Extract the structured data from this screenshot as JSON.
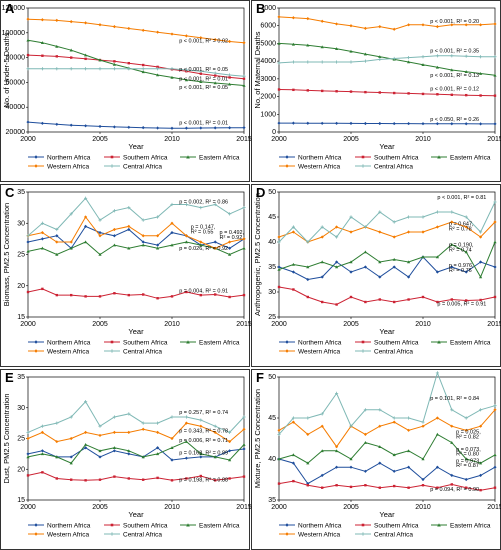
{
  "series_meta": [
    {
      "name": "Northern Africa",
      "color": "#1f4e9c",
      "marker": "diamond"
    },
    {
      "name": "Southern Africa",
      "color": "#cc2233",
      "marker": "square"
    },
    {
      "name": "Eastern Africa",
      "color": "#2e7d32",
      "marker": "triangle"
    },
    {
      "name": "Western Africa",
      "color": "#f57c00",
      "marker": "diamond"
    },
    {
      "name": "Central Africa",
      "color": "#7fb8b5",
      "marker": "plus"
    }
  ],
  "chart_data": [
    {
      "panel": "A",
      "type": "line",
      "x": [
        2000,
        2001,
        2002,
        2003,
        2004,
        2005,
        2006,
        2007,
        2008,
        2009,
        2010,
        2011,
        2012,
        2013,
        2014,
        2015
      ],
      "xlabel": "Year",
      "ylabel": "No. of Under-5 Deaths",
      "ylim": [
        20000,
        120000
      ],
      "yticks": [
        20000,
        40000,
        60000,
        80000,
        100000,
        120000
      ],
      "xticks": [
        2000,
        2005,
        2010,
        2015
      ],
      "series": [
        {
          "values": [
            28000,
            27000,
            26200,
            25500,
            25000,
            24500,
            24100,
            23800,
            23500,
            23200,
            23000,
            23100,
            23200,
            23300,
            23400,
            23500
          ]
        },
        {
          "values": [
            82000,
            81500,
            81000,
            80000,
            79000,
            78000,
            77000,
            75500,
            74000,
            72500,
            70500,
            69000,
            67000,
            65500,
            64000,
            63000
          ]
        },
        {
          "values": [
            94000,
            92000,
            89000,
            86000,
            82000,
            78000,
            74500,
            71500,
            68500,
            66000,
            64000,
            62000,
            60500,
            59500,
            58500,
            57500
          ]
        },
        {
          "values": [
            111000,
            110500,
            110000,
            109000,
            108000,
            106500,
            105000,
            103500,
            102000,
            100500,
            99000,
            97500,
            96000,
            94500,
            93000,
            92000
          ]
        },
        {
          "values": [
            71000,
            71000,
            71000,
            71000,
            71000,
            71000,
            71000,
            71000,
            71000,
            71000,
            71000,
            70000,
            69000,
            67500,
            66000,
            65000
          ]
        }
      ],
      "annotations": [
        {
          "text": "p < 0.001, R² = 0.02",
          "x": 2010.5,
          "y": 92000
        },
        {
          "text": "p < 0.001, R² = 0.05",
          "x": 2010.5,
          "y": 69000
        },
        {
          "text": "p < 0.001, R² = 0.01",
          "x": 2010.5,
          "y": 61500
        },
        {
          "text": "p < 0.001, R² = 0.05",
          "x": 2010.5,
          "y": 54500
        },
        {
          "text": "p < 0.001, R² = 0.01",
          "x": 2010.5,
          "y": 26000
        }
      ]
    },
    {
      "panel": "B",
      "type": "line",
      "x": [
        2000,
        2001,
        2002,
        2003,
        2004,
        2005,
        2006,
        2007,
        2008,
        2009,
        2010,
        2011,
        2012,
        2013,
        2014,
        2015
      ],
      "xlabel": "Year",
      "ylabel": "No. of Maternal Deaths",
      "ylim": [
        0,
        7000
      ],
      "yticks": [
        0,
        1000,
        2000,
        3000,
        4000,
        5000,
        6000,
        7000
      ],
      "xticks": [
        2000,
        2005,
        2010,
        2015
      ],
      "series": [
        {
          "values": [
            500,
            500,
            495,
            490,
            490,
            485,
            480,
            480,
            475,
            475,
            470,
            470,
            465,
            465,
            460,
            460
          ]
        },
        {
          "values": [
            2400,
            2380,
            2350,
            2320,
            2300,
            2280,
            2250,
            2230,
            2200,
            2180,
            2150,
            2130,
            2100,
            2080,
            2060,
            2050
          ]
        },
        {
          "values": [
            5000,
            4950,
            4900,
            4800,
            4700,
            4550,
            4400,
            4250,
            4100,
            3950,
            3800,
            3650,
            3500,
            3400,
            3300,
            3200
          ]
        },
        {
          "values": [
            6500,
            6450,
            6400,
            6250,
            6100,
            6000,
            5850,
            5950,
            5800,
            6050,
            6050,
            5950,
            6050,
            6050,
            6050,
            6100
          ]
        },
        {
          "values": [
            3900,
            3950,
            3950,
            3950,
            3950,
            3950,
            4000,
            4100,
            4150,
            4200,
            4250,
            4300,
            4300,
            4280,
            4250,
            4250
          ]
        }
      ],
      "annotations": [
        {
          "text": "p < 0.001, R² = 0.20",
          "x": 2010.5,
          "y": 6150
        },
        {
          "text": "p < 0.001, R² = 0.35",
          "x": 2010.5,
          "y": 4500
        },
        {
          "text": "p < 0.001, R² = 0.13",
          "x": 2010.5,
          "y": 3100
        },
        {
          "text": "p < 0.001, R² = 0.12",
          "x": 2010.5,
          "y": 2350
        },
        {
          "text": "p < 0.050, R² = 0.26",
          "x": 2010.5,
          "y": 620
        }
      ]
    },
    {
      "panel": "C",
      "type": "line",
      "x": [
        2000,
        2001,
        2002,
        2003,
        2004,
        2005,
        2006,
        2007,
        2008,
        2009,
        2010,
        2011,
        2012,
        2013,
        2014,
        2015
      ],
      "xlabel": "Year",
      "ylabel": "Biomass, PM2.5 Concentration",
      "ylim": [
        15,
        35
      ],
      "yticks": [
        15,
        20,
        25,
        30,
        35
      ],
      "xticks": [
        2000,
        2005,
        2010,
        2015
      ],
      "series": [
        {
          "values": [
            27,
            27.5,
            28,
            26,
            29.5,
            28.5,
            28,
            29,
            27,
            26.5,
            28.5,
            28,
            26.5,
            27,
            26,
            27.5
          ]
        },
        {
          "values": [
            19,
            19.5,
            18.5,
            18.5,
            18.3,
            18.3,
            18.8,
            18.5,
            18.6,
            18,
            18.3,
            19,
            18.5,
            18.6,
            18.2,
            18.5
          ]
        },
        {
          "values": [
            25.5,
            26,
            25,
            26,
            27,
            25,
            26.5,
            26,
            26.5,
            26,
            26.5,
            27,
            26.5,
            26,
            25,
            26
          ]
        },
        {
          "values": [
            28,
            28.5,
            27,
            27,
            31,
            28,
            29,
            29.5,
            28,
            28,
            30,
            28,
            27,
            26,
            27,
            27.5
          ]
        },
        {
          "values": [
            28,
            30,
            29,
            31.5,
            34,
            30.5,
            32,
            32.5,
            30.5,
            31,
            33,
            33,
            32.5,
            33,
            31.5,
            32.5
          ]
        }
      ],
      "annotations": [
        {
          "text": "p = 0.002, R² = 0.86",
          "x": 2010.5,
          "y": 33.2
        },
        {
          "text": "p = 0.147,",
          "x": 2011.3,
          "y": 29.2
        },
        {
          "text": "R² = 0.55",
          "x": 2011.3,
          "y": 28.4
        },
        {
          "text": "p = 0.492,",
          "x": 2013.3,
          "y": 28.3
        },
        {
          "text": "R² = 0.92",
          "x": 2013.3,
          "y": 27.5
        },
        {
          "text": "p = 0.026, R² = 0.92",
          "x": 2010.5,
          "y": 25.7
        },
        {
          "text": "p = 0.004, R² = 0.91",
          "x": 2010.5,
          "y": 18.9
        }
      ]
    },
    {
      "panel": "D",
      "type": "line",
      "x": [
        2000,
        2001,
        2002,
        2003,
        2004,
        2005,
        2006,
        2007,
        2008,
        2009,
        2010,
        2011,
        2012,
        2013,
        2014,
        2015
      ],
      "xlabel": "Year",
      "ylabel": "Anthropogenic, PM2.5 Concentration",
      "ylim": [
        25,
        50
      ],
      "yticks": [
        25,
        30,
        35,
        40,
        45,
        50
      ],
      "xticks": [
        2000,
        2005,
        2010,
        2015
      ],
      "series": [
        {
          "values": [
            35,
            34,
            32.5,
            33,
            36,
            34,
            35,
            33,
            35,
            33,
            37,
            34,
            35,
            34,
            36,
            35
          ]
        },
        {
          "values": [
            31,
            30.5,
            29,
            28,
            27.5,
            29,
            28,
            28.5,
            28,
            28.5,
            29,
            28,
            28.5,
            28.3,
            28.4,
            29
          ]
        },
        {
          "values": [
            34.5,
            35.5,
            35,
            36,
            35,
            36,
            38,
            36,
            36.5,
            36,
            37,
            37,
            39.5,
            38,
            33,
            40
          ]
        },
        {
          "values": [
            41,
            42,
            40,
            41,
            43,
            42,
            43,
            42,
            41,
            42,
            42,
            43,
            44,
            43,
            41,
            44
          ]
        },
        {
          "values": [
            40,
            43,
            40,
            43,
            41,
            45,
            43,
            46,
            44,
            45,
            45,
            46,
            46,
            45,
            42,
            48
          ]
        }
      ],
      "annotations": [
        {
          "text": "p < 0.001, R² = 0.81",
          "x": 2011,
          "y": 48.6
        },
        {
          "text": "p = 0.647,",
          "x": 2011.8,
          "y": 43.3
        },
        {
          "text": "R² = 0.78",
          "x": 2011.8,
          "y": 42.3
        },
        {
          "text": "p = 0.190,",
          "x": 2011.8,
          "y": 39.1
        },
        {
          "text": "R² = 0.74",
          "x": 2011.8,
          "y": 38.1
        },
        {
          "text": "p = 0.976,",
          "x": 2011.8,
          "y": 35.0
        },
        {
          "text": "R² = 0.76",
          "x": 2011.8,
          "y": 34.0
        },
        {
          "text": "p = 0.005, R² = 0.91",
          "x": 2011,
          "y": 27.3
        }
      ]
    },
    {
      "panel": "E",
      "type": "line",
      "x": [
        2000,
        2001,
        2002,
        2003,
        2004,
        2005,
        2006,
        2007,
        2008,
        2009,
        2010,
        2011,
        2012,
        2013,
        2014,
        2015
      ],
      "xlabel": "Year",
      "ylabel": "Dust, PM2.5 Concentration",
      "ylim": [
        15,
        35
      ],
      "yticks": [
        15,
        20,
        25,
        30,
        35
      ],
      "xticks": [
        2000,
        2005,
        2010,
        2015
      ],
      "series": [
        {
          "values": [
            22.5,
            23,
            22,
            22,
            23.5,
            22,
            23,
            22.5,
            22,
            23.5,
            21.5,
            21.8,
            22,
            22,
            23,
            23.3
          ]
        },
        {
          "values": [
            19,
            19.5,
            18.5,
            18.3,
            18.2,
            18.3,
            18.8,
            18.5,
            18.3,
            18.6,
            18.2,
            18.5,
            18.9,
            18.2,
            18.5,
            18.8
          ]
        },
        {
          "values": [
            22,
            22.5,
            22,
            21,
            24,
            23,
            23.5,
            23,
            22,
            22.5,
            23.5,
            24.5,
            22.5,
            22,
            21.5,
            24
          ]
        },
        {
          "values": [
            25,
            26,
            24.5,
            25,
            26,
            25.5,
            26,
            26,
            26.5,
            26,
            25,
            27.5,
            27,
            26,
            24.5,
            26.5
          ]
        },
        {
          "values": [
            26,
            27,
            27.5,
            28.5,
            31,
            27,
            28.5,
            29,
            27.5,
            27.5,
            28.5,
            28.5,
            28,
            27,
            26,
            28.5
          ]
        }
      ],
      "annotations": [
        {
          "text": "p = 0.257, R² = 0.74",
          "x": 2010.5,
          "y": 29.0
        },
        {
          "text": "p = 0.343, R² = 0.78",
          "x": 2010.5,
          "y": 26.0
        },
        {
          "text": "p = 0.006, R² = 0.71",
          "x": 2010.5,
          "y": 24.4
        },
        {
          "text": "p = 0.168, R² = 0.89",
          "x": 2010.5,
          "y": 22.4
        },
        {
          "text": "p = 0.198, R² = 0.88",
          "x": 2010.5,
          "y": 18.0
        }
      ]
    },
    {
      "panel": "F",
      "type": "line",
      "x": [
        2000,
        2001,
        2002,
        2003,
        2004,
        2005,
        2006,
        2007,
        2008,
        2009,
        2010,
        2011,
        2012,
        2013,
        2014,
        2015
      ],
      "xlabel": "Year",
      "ylabel": "Mixture, PM2.5 Concentration",
      "ylim": [
        35,
        50
      ],
      "yticks": [
        35,
        40,
        45,
        50
      ],
      "xticks": [
        2000,
        2005,
        2010,
        2015
      ],
      "series": [
        {
          "values": [
            40,
            39.5,
            37,
            38,
            39,
            39,
            38.5,
            39.5,
            38.5,
            39,
            37.5,
            39,
            38,
            37.5,
            38,
            39
          ]
        },
        {
          "values": [
            37,
            37.3,
            36.8,
            36.5,
            36.8,
            36.6,
            36.8,
            36.5,
            36.7,
            36.5,
            36.8,
            36.5,
            36.9,
            36.5,
            36.2,
            36.5
          ]
        },
        {
          "values": [
            40,
            40.5,
            39.5,
            41,
            41,
            40,
            42,
            41.5,
            40.5,
            41,
            40,
            43,
            42,
            40,
            39.5,
            40.5
          ]
        },
        {
          "values": [
            43.5,
            44.5,
            43,
            44,
            41.5,
            44,
            43,
            44,
            44.5,
            43.5,
            44,
            45,
            44,
            43.5,
            44,
            46
          ]
        },
        {
          "values": [
            43,
            45,
            45,
            45.5,
            48,
            44,
            46,
            46,
            45,
            45,
            44.5,
            50.5,
            46,
            45,
            46,
            46.5
          ]
        }
      ],
      "annotations": [
        {
          "text": "p = 0.101, R² = 0.84",
          "x": 2010.5,
          "y": 47.2
        },
        {
          "text": "p = 0.025,",
          "x": 2012.3,
          "y": 43.1
        },
        {
          "text": "R² = 0.82",
          "x": 2012.3,
          "y": 42.5
        },
        {
          "text": "p = 0.073,",
          "x": 2012.3,
          "y": 41.0
        },
        {
          "text": "R² = 0.80",
          "x": 2012.3,
          "y": 40.4
        },
        {
          "text": "p = 0.973,",
          "x": 2012.3,
          "y": 39.6
        },
        {
          "text": "R² = 0.87",
          "x": 2012.3,
          "y": 39.0
        },
        {
          "text": "p = 0.094, R² = 0.90",
          "x": 2010.5,
          "y": 36.1
        }
      ]
    }
  ]
}
